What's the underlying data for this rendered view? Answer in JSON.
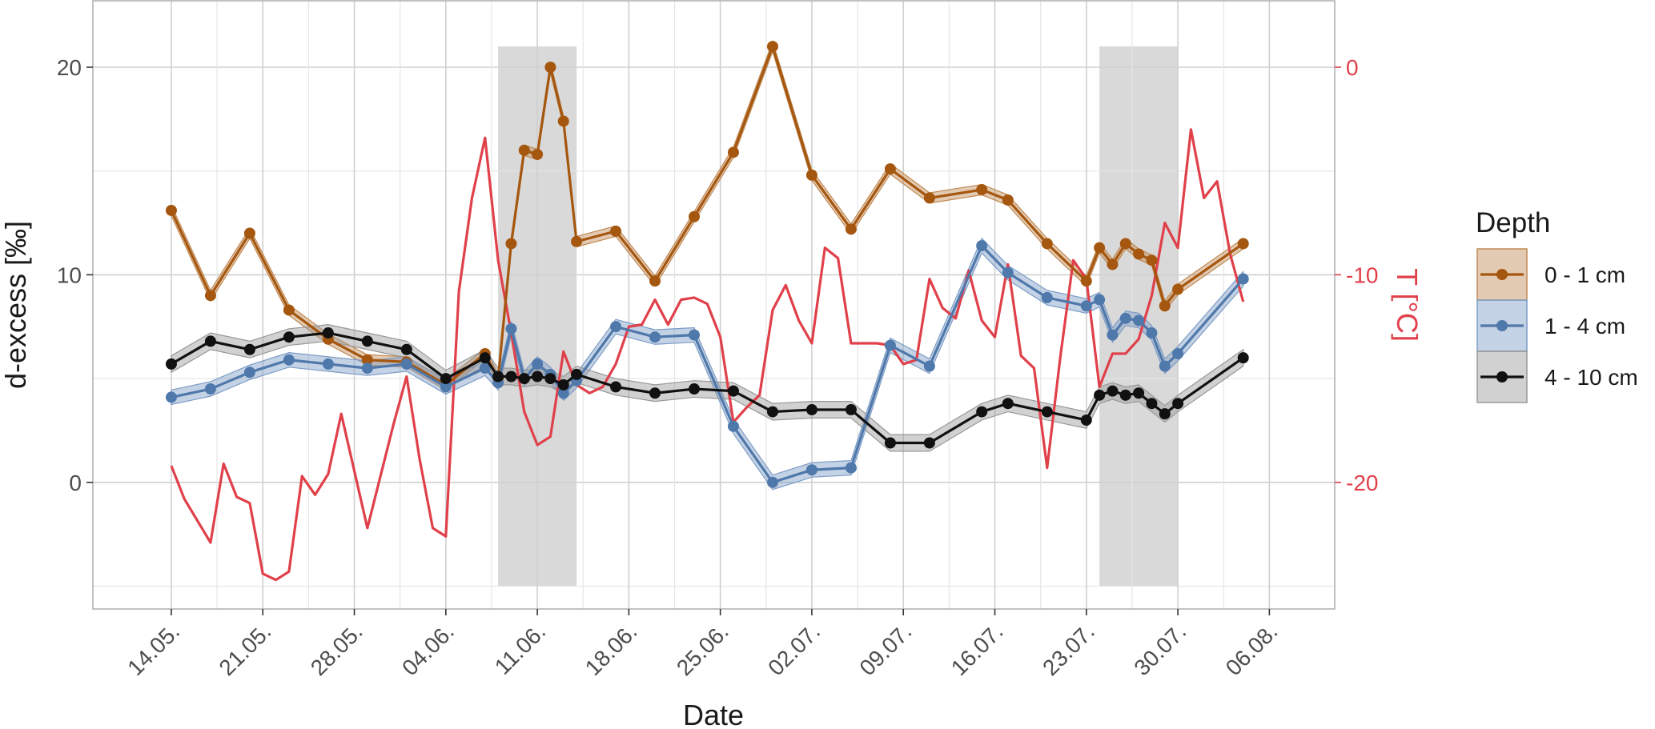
{
  "chart_data": {
    "type": "line",
    "xlabel": "Date",
    "ylabel": "d-excess [‰]",
    "y2label": "T [°C]",
    "ylim": [
      -6.1,
      23.2
    ],
    "y_ticks": [
      "0",
      "10",
      "20"
    ],
    "y_tick_values": [
      0,
      10,
      20
    ],
    "y2_ticks": [
      "0",
      "-10",
      "-20"
    ],
    "y2_tick_values": [
      0,
      -10,
      -20
    ],
    "y2_lim": [
      -26.1,
      3.2
    ],
    "xlim": [
      "2021-05-08",
      "2021-08-11"
    ],
    "x_ticks": [
      "14.05.",
      "21.05.",
      "28.05.",
      "04.06.",
      "11.06.",
      "18.06.",
      "25.06.",
      "02.07.",
      "09.07.",
      "16.07.",
      "23.07.",
      "30.07.",
      "06.08."
    ],
    "x_tick_dates": [
      "2021-05-14",
      "2021-05-21",
      "2021-05-28",
      "2021-06-04",
      "2021-06-11",
      "2021-06-18",
      "2021-06-25",
      "2021-07-02",
      "2021-07-09",
      "2021-07-16",
      "2021-07-23",
      "2021-07-30",
      "2021-08-06"
    ],
    "grid": true,
    "legend": {
      "title": "Depth",
      "position": "right",
      "entries": [
        "0 - 1 cm",
        "1 - 4 cm",
        "4 - 10 cm"
      ]
    },
    "shaded_periods": [
      {
        "start": "2021-06-08",
        "end": "2021-06-14"
      },
      {
        "start": "2021-07-24",
        "end": "2021-07-30"
      }
    ],
    "series": [
      {
        "name": "0 - 1 cm",
        "axis": "left",
        "color": "#a5570f",
        "band_color": "#c08a55",
        "x": [
          "2021-05-14",
          "2021-05-17",
          "2021-05-20",
          "2021-05-23",
          "2021-05-26",
          "2021-05-29",
          "2021-06-01",
          "2021-06-04",
          "2021-06-07",
          "2021-06-08",
          "2021-06-09",
          "2021-06-10",
          "2021-06-11",
          "2021-06-12",
          "2021-06-13",
          "2021-06-14",
          "2021-06-17",
          "2021-06-20",
          "2021-06-23",
          "2021-06-26",
          "2021-06-29",
          "2021-07-02",
          "2021-07-05",
          "2021-07-08",
          "2021-07-11",
          "2021-07-15",
          "2021-07-17",
          "2021-07-20",
          "2021-07-23",
          "2021-07-24",
          "2021-07-25",
          "2021-07-26",
          "2021-07-27",
          "2021-07-28",
          "2021-07-29",
          "2021-07-30",
          "2021-08-04"
        ],
        "values": [
          13.1,
          9.0,
          12.0,
          8.3,
          6.9,
          5.9,
          5.8,
          4.7,
          6.2,
          5.0,
          11.5,
          16.0,
          15.8,
          20.0,
          17.4,
          11.6,
          12.1,
          9.7,
          12.8,
          15.9,
          21.0,
          14.8,
          12.2,
          15.1,
          13.7,
          14.1,
          13.6,
          11.5,
          9.7,
          11.3,
          10.5,
          11.5,
          11.0,
          10.7,
          8.5,
          9.3,
          11.5
        ],
        "ci": 0.25
      },
      {
        "name": "1 - 4 cm",
        "axis": "left",
        "color": "#4f78ab",
        "band_color": "#7d9cc6",
        "x": [
          "2021-05-14",
          "2021-05-17",
          "2021-05-20",
          "2021-05-23",
          "2021-05-26",
          "2021-05-29",
          "2021-06-01",
          "2021-06-04",
          "2021-06-07",
          "2021-06-08",
          "2021-06-09",
          "2021-06-10",
          "2021-06-11",
          "2021-06-12",
          "2021-06-13",
          "2021-06-14",
          "2021-06-17",
          "2021-06-20",
          "2021-06-23",
          "2021-06-26",
          "2021-06-29",
          "2021-07-02",
          "2021-07-05",
          "2021-07-08",
          "2021-07-11",
          "2021-07-15",
          "2021-07-17",
          "2021-07-20",
          "2021-07-23",
          "2021-07-24",
          "2021-07-25",
          "2021-07-26",
          "2021-07-27",
          "2021-07-28",
          "2021-07-29",
          "2021-07-30",
          "2021-08-04"
        ],
        "values": [
          4.1,
          4.5,
          5.3,
          5.9,
          5.7,
          5.5,
          5.7,
          4.6,
          5.5,
          4.8,
          7.4,
          5.0,
          5.7,
          5.2,
          4.3,
          4.9,
          7.5,
          7.0,
          7.1,
          2.7,
          0.0,
          0.6,
          0.7,
          6.6,
          5.6,
          11.4,
          10.1,
          8.9,
          8.5,
          8.8,
          7.1,
          7.9,
          7.8,
          7.2,
          5.6,
          6.2,
          9.8
        ],
        "ci": 0.35
      },
      {
        "name": "4 - 10 cm",
        "axis": "left",
        "color": "#111111",
        "band_color": "#999999",
        "x": [
          "2021-05-14",
          "2021-05-17",
          "2021-05-20",
          "2021-05-23",
          "2021-05-26",
          "2021-05-29",
          "2021-06-01",
          "2021-06-04",
          "2021-06-07",
          "2021-06-08",
          "2021-06-09",
          "2021-06-10",
          "2021-06-11",
          "2021-06-12",
          "2021-06-13",
          "2021-06-14",
          "2021-06-17",
          "2021-06-20",
          "2021-06-23",
          "2021-06-26",
          "2021-06-29",
          "2021-07-02",
          "2021-07-05",
          "2021-07-08",
          "2021-07-11",
          "2021-07-15",
          "2021-07-17",
          "2021-07-20",
          "2021-07-23",
          "2021-07-24",
          "2021-07-25",
          "2021-07-26",
          "2021-07-27",
          "2021-07-28",
          "2021-07-29",
          "2021-07-30",
          "2021-08-04"
        ],
        "values": [
          5.7,
          6.8,
          6.4,
          7.0,
          7.2,
          6.8,
          6.4,
          5.0,
          6.0,
          5.1,
          5.1,
          5.0,
          5.1,
          5.0,
          4.7,
          5.2,
          4.6,
          4.3,
          4.5,
          4.4,
          3.4,
          3.5,
          3.5,
          1.9,
          1.9,
          3.4,
          3.8,
          3.4,
          3.0,
          4.2,
          4.4,
          4.2,
          4.3,
          3.8,
          3.3,
          3.8,
          6.0
        ],
        "ci": 0.4
      },
      {
        "name": "T",
        "axis": "right",
        "color": "#e0404a",
        "markers": false,
        "x": [
          "2021-05-14",
          "2021-05-15",
          "2021-05-17",
          "2021-05-18",
          "2021-05-19",
          "2021-05-20",
          "2021-05-21",
          "2021-05-22",
          "2021-05-23",
          "2021-05-24",
          "2021-05-25",
          "2021-05-26",
          "2021-05-27",
          "2021-05-29",
          "2021-05-31",
          "2021-06-01",
          "2021-06-02",
          "2021-06-03",
          "2021-06-04",
          "2021-06-05",
          "2021-06-06",
          "2021-06-07",
          "2021-06-08",
          "2021-06-09",
          "2021-06-10",
          "2021-06-11",
          "2021-06-12",
          "2021-06-13",
          "2021-06-14",
          "2021-06-15",
          "2021-06-16",
          "2021-06-17",
          "2021-06-18",
          "2021-06-19",
          "2021-06-20",
          "2021-06-21",
          "2021-06-22",
          "2021-06-23",
          "2021-06-24",
          "2021-06-25",
          "2021-06-26",
          "2021-06-27",
          "2021-06-28",
          "2021-06-29",
          "2021-06-30",
          "2021-07-01",
          "2021-07-02",
          "2021-07-03",
          "2021-07-04",
          "2021-07-05",
          "2021-07-07",
          "2021-07-08",
          "2021-07-09",
          "2021-07-10",
          "2021-07-11",
          "2021-07-12",
          "2021-07-13",
          "2021-07-14",
          "2021-07-15",
          "2021-07-16",
          "2021-07-17",
          "2021-07-18",
          "2021-07-19",
          "2021-07-20",
          "2021-07-21",
          "2021-07-22",
          "2021-07-23",
          "2021-07-24",
          "2021-07-25",
          "2021-07-26",
          "2021-07-27",
          "2021-07-28",
          "2021-07-29",
          "2021-07-30",
          "2021-07-31",
          "2021-08-01",
          "2021-08-02",
          "2021-08-03",
          "2021-08-04"
        ],
        "values": [
          -19.2,
          -20.8,
          -22.9,
          -19.1,
          -20.7,
          -21.0,
          -24.4,
          -24.7,
          -24.3,
          -19.7,
          -20.6,
          -19.6,
          -16.7,
          -22.2,
          -17.2,
          -14.9,
          -18.9,
          -22.2,
          -22.6,
          -10.8,
          -6.3,
          -3.4,
          -9.3,
          -12.8,
          -16.6,
          -18.2,
          -17.8,
          -13.7,
          -15.3,
          -15.7,
          -15.4,
          -14.3,
          -12.5,
          -12.4,
          -11.2,
          -12.4,
          -11.2,
          -11.1,
          -11.4,
          -13.0,
          -17.1,
          -16.4,
          -15.8,
          -11.7,
          -10.5,
          -12.2,
          -13.3,
          -8.7,
          -9.2,
          -13.3,
          -13.3,
          -13.4,
          -14.3,
          -14.1,
          -10.2,
          -11.6,
          -12.1,
          -9.8,
          -12.2,
          -13.0,
          -9.5,
          -13.9,
          -14.5,
          -19.3,
          -14.0,
          -9.3,
          -10.2,
          -15.4,
          -13.8,
          -13.8,
          -13.1,
          -11.0,
          -7.5,
          -8.7,
          -3.0,
          -6.3,
          -5.5,
          -9.0,
          -11.3
        ]
      }
    ]
  }
}
